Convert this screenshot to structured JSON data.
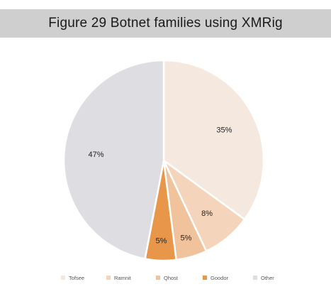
{
  "chart_data": {
    "type": "pie",
    "title": "Figure 29 Botnet families using XMRig",
    "categories": [
      "Tofsee",
      "Ramnit",
      "Qhost",
      "Goodor",
      "Other"
    ],
    "values": [
      35,
      8,
      5,
      5,
      47
    ],
    "value_labels": [
      "35%",
      "8%",
      "5%",
      "5%",
      "47%"
    ],
    "colors": [
      "#f5e9df",
      "#f4d5bb",
      "#f0c39d",
      "#e8974a",
      "#dedee2"
    ],
    "legend_position": "bottom",
    "start_angle_deg": 0,
    "direction": "clockwise"
  }
}
